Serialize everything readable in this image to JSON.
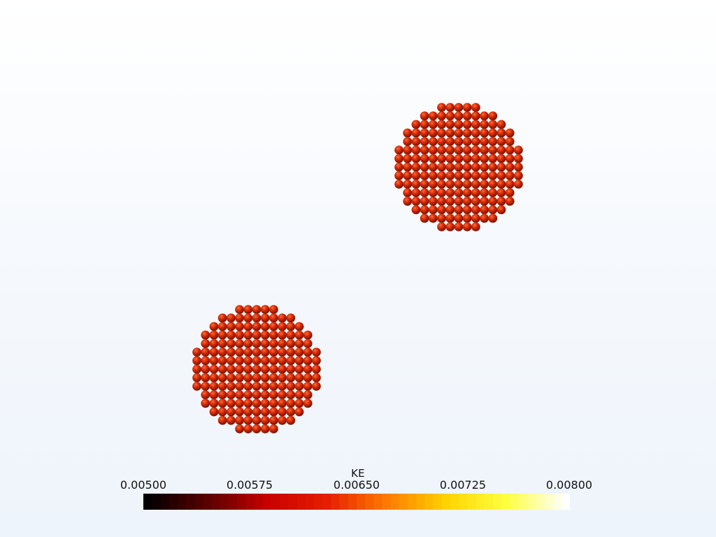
{
  "colorbar": {
    "title": "KE",
    "ticks": [
      "0.00500",
      "0.00575",
      "0.00650",
      "0.00725",
      "0.00800"
    ],
    "range": [
      0.005,
      0.008
    ],
    "colormap": "black-body",
    "colors": [
      "#000000",
      "#5a0000",
      "#c80000",
      "#e61e00",
      "#ff7a00",
      "#ffd400",
      "#ffff40",
      "#ffffff"
    ]
  },
  "scene": {
    "background_top": "#ffffff",
    "background_bottom": "#eef4fb",
    "particle_color": "#d42a06",
    "clusters": [
      {
        "name": "upper-right-cluster"
      },
      {
        "name": "lower-left-cluster"
      }
    ]
  }
}
